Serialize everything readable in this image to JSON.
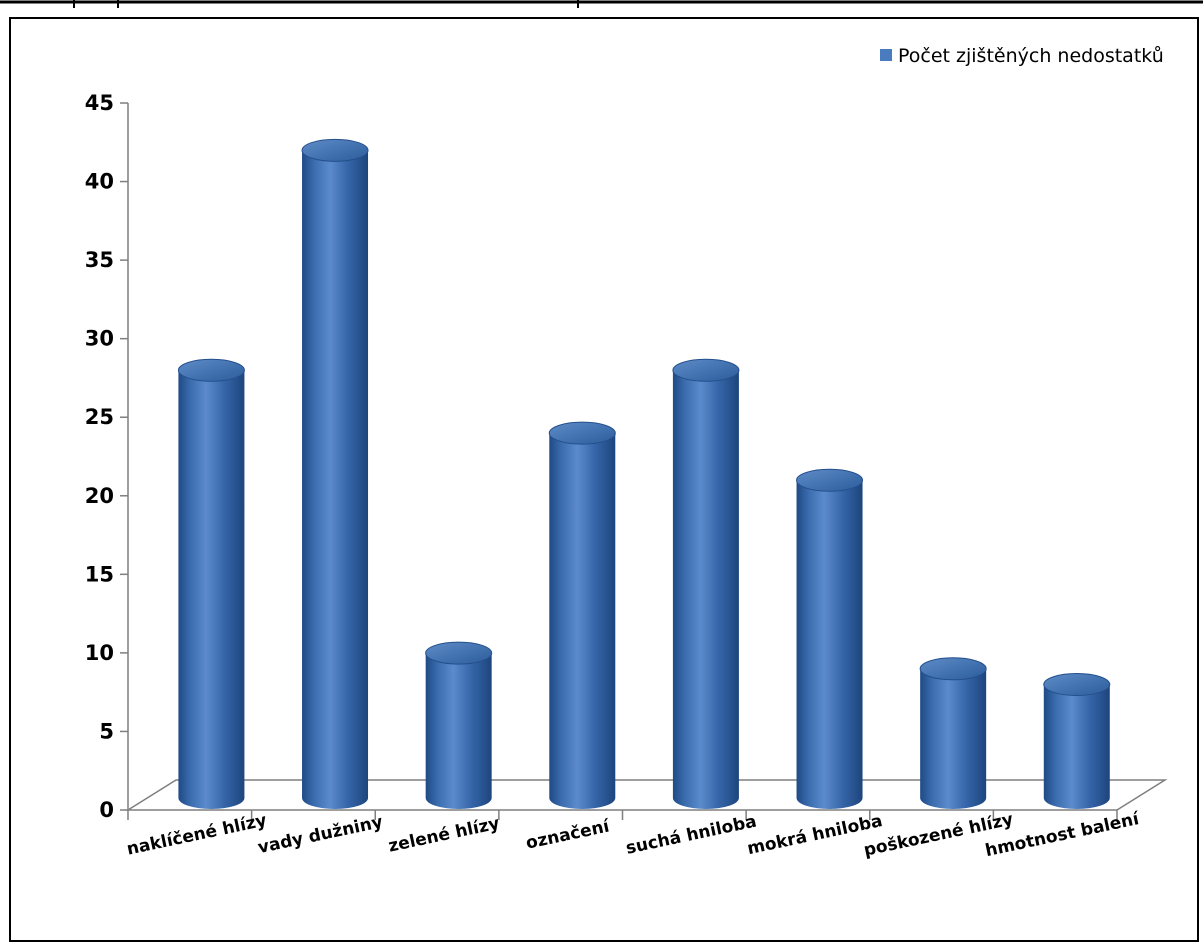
{
  "colors": {
    "bar": "#3f72b6",
    "bar_dark": "#1f4a85",
    "bar_light": "#6f9ad3",
    "frame": "#000000",
    "axis": "#808080"
  },
  "chart_data": {
    "type": "bar",
    "title": "",
    "xlabel": "",
    "ylabel": "",
    "categories": [
      "naklíčené hlízy",
      "vady dužniny",
      "zelené hlízy",
      "označení",
      "suchá hniloba",
      "mokrá hniloba",
      "poškozené hlízy",
      "hmotnost balení"
    ],
    "series": [
      {
        "name": "Počet zjištěných nedostatků",
        "values": [
          27,
          41,
          9,
          23,
          27,
          20,
          8,
          7
        ]
      }
    ],
    "ylim": [
      0,
      45
    ],
    "yticks": [
      "0",
      "5",
      "10",
      "15",
      "20",
      "25",
      "30",
      "35",
      "40",
      "45"
    ],
    "legend_position": "top-right",
    "grid": false,
    "style": "3d-cylinder"
  }
}
